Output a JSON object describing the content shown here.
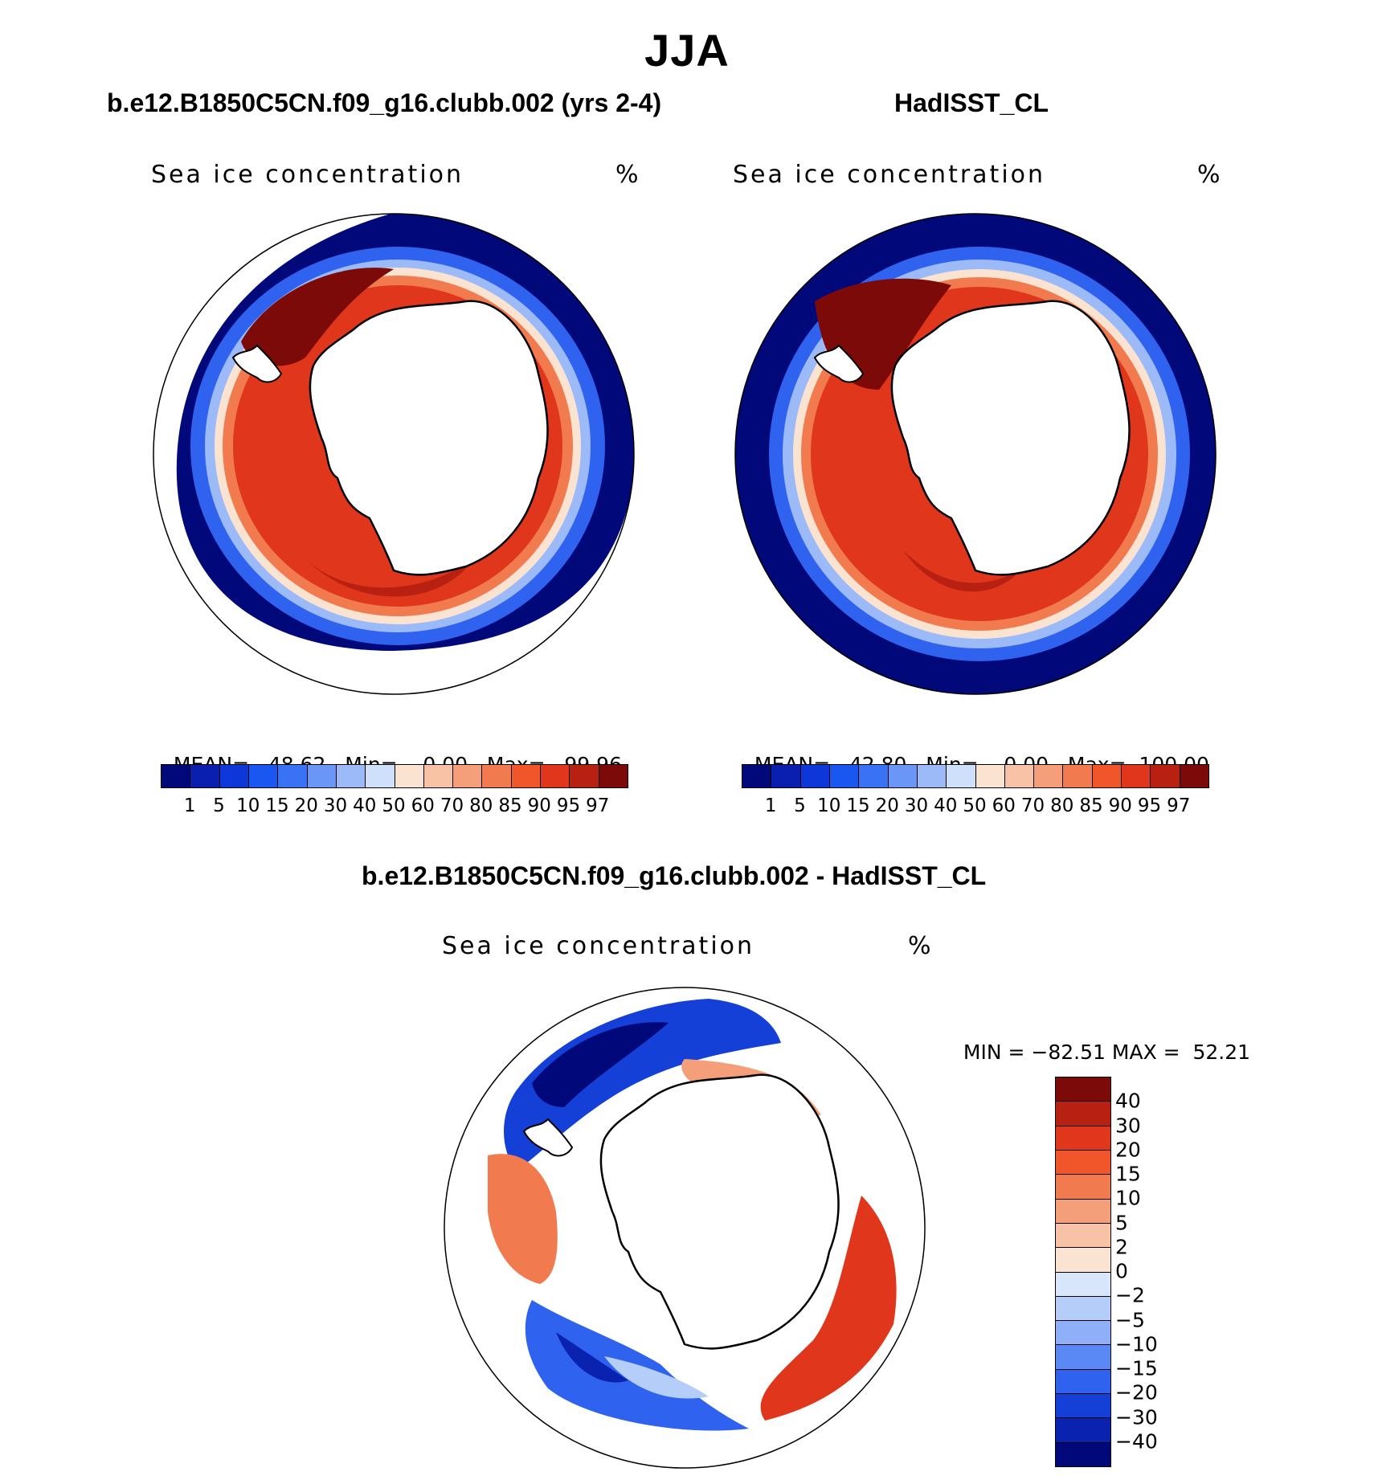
{
  "title": "JJA",
  "panels": {
    "model": {
      "case_title": "b.e12.B1850C5CN.f09_g16.clubb.002 (yrs 2-4)",
      "variable": "Sea ice concentration",
      "units": "%",
      "mean_label": "MEAN=",
      "mean": "48.62",
      "min_label": "Min=",
      "min": "0.00",
      "max_label": "Max=",
      "max": "99.96"
    },
    "obs": {
      "case_title": "HadISST_CL",
      "variable": "Sea ice concentration",
      "units": "%",
      "mean_label": "MEAN=",
      "mean": "42.80",
      "min_label": "Min=",
      "min": "0.00",
      "max_label": "Max=",
      "max": "100.00"
    },
    "diff": {
      "case_title": "b.e12.B1850C5CN.f09_g16.clubb.002 - HadISST_CL",
      "variable": "Sea ice concentration",
      "units": "%",
      "min_label": "MIN =",
      "min": "−82.51",
      "max_label": "MAX =",
      "max": "52.21"
    }
  },
  "colorbar_main": {
    "colors": [
      "#00087a",
      "#0a1fb0",
      "#0d37d8",
      "#1a56f0",
      "#3a72f5",
      "#6a96f7",
      "#9cbaf8",
      "#cfe0fa",
      "#fbe3d2",
      "#f8c2a6",
      "#f59e7a",
      "#f27a4f",
      "#f0562a",
      "#e0361b",
      "#b82011",
      "#7c0a08"
    ],
    "labels": [
      "1",
      "5",
      "10",
      "15",
      "20",
      "30",
      "40",
      "50",
      "60",
      "70",
      "80",
      "85",
      "90",
      "95",
      "97"
    ]
  },
  "colorbar_diff": {
    "colors": [
      "#7c0a08",
      "#b82011",
      "#e0361b",
      "#f0562a",
      "#f27a4f",
      "#f59e7a",
      "#f8c2a6",
      "#fbe3d2",
      "#d7e6fb",
      "#b5cdf9",
      "#8fb0f8",
      "#5a88f5",
      "#2f62ee",
      "#1540d8",
      "#0a22b0",
      "#00087a"
    ],
    "labels": [
      "40",
      "30",
      "20",
      "15",
      "10",
      "5",
      "2",
      "0",
      "−2",
      "−5",
      "−10",
      "−15",
      "−20",
      "−30",
      "−40"
    ]
  }
}
